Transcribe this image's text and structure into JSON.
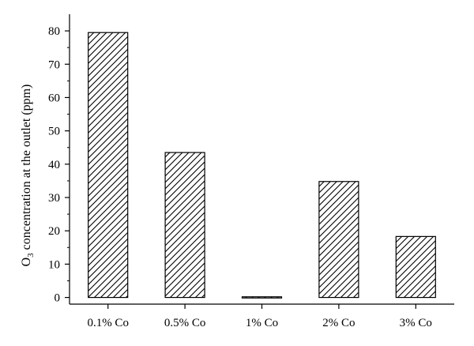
{
  "chart_data": {
    "type": "bar",
    "categories": [
      "0.1% Co",
      "0.5% Co",
      "1% Co",
      "2% Co",
      "3% Co"
    ],
    "values": [
      79.5,
      43.5,
      0.2,
      34.8,
      18.3
    ],
    "title": "",
    "xlabel": "",
    "ylabel": {
      "main": "O",
      "subscript": "3",
      "rest": " concentration at the outlet (ppm)"
    },
    "ylim": [
      -2,
      85
    ],
    "yticks": [
      0,
      10,
      20,
      30,
      40,
      50,
      60,
      70,
      80
    ],
    "grid": false,
    "legend": "none",
    "bar_fill": "hatched-diagonal",
    "colors": {
      "bar_stroke": "#000000",
      "hatch": "#000000",
      "background": "#ffffff"
    }
  }
}
